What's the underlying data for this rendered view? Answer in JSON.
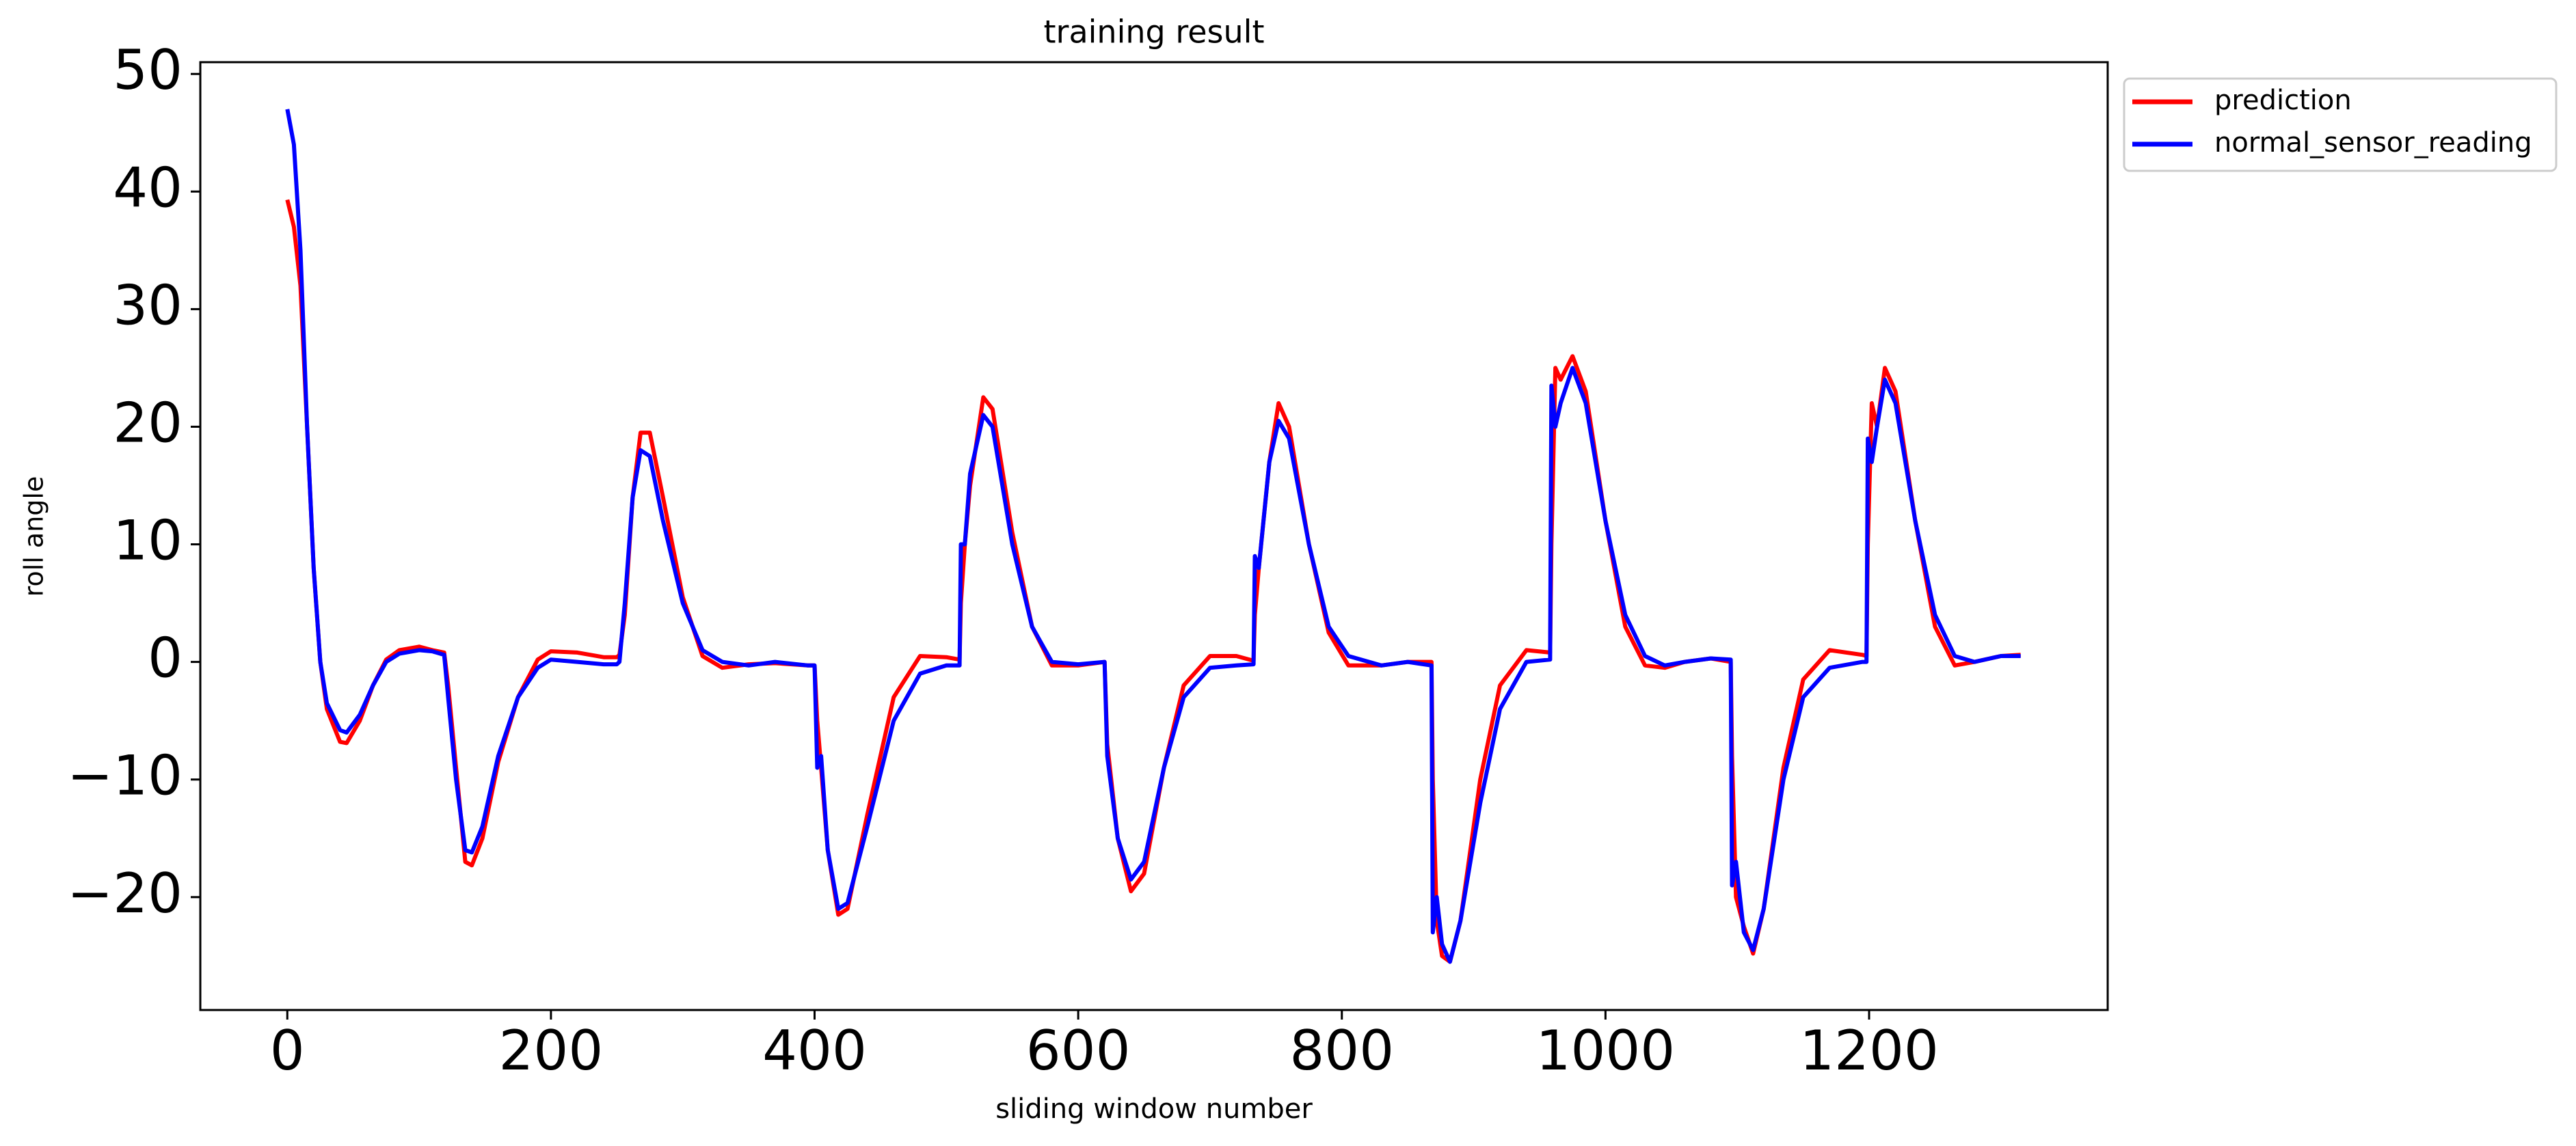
{
  "chart_data": {
    "type": "line",
    "title": "training result",
    "x_label": "sliding window number",
    "y_label": "roll angle",
    "x": [
      0,
      5,
      10,
      15,
      20,
      25,
      30,
      40,
      45,
      55,
      65,
      75,
      85,
      100,
      110,
      119,
      122,
      128,
      135,
      140,
      148,
      160,
      175,
      190,
      200,
      220,
      240,
      250,
      252,
      256,
      262,
      268,
      275,
      285,
      300,
      315,
      330,
      350,
      370,
      395,
      400,
      402,
      405,
      410,
      418,
      425,
      440,
      460,
      480,
      500,
      510,
      511,
      514,
      518,
      528,
      535,
      550,
      565,
      580,
      600,
      620,
      622,
      630,
      640,
      650,
      665,
      680,
      700,
      720,
      733,
      734,
      737,
      745,
      752,
      760,
      775,
      790,
      805,
      830,
      850,
      868,
      869,
      872,
      876,
      882,
      890,
      905,
      920,
      940,
      958,
      959,
      962,
      966,
      975,
      985,
      1000,
      1015,
      1030,
      1045,
      1060,
      1080,
      1095,
      1096,
      1099,
      1105,
      1112,
      1120,
      1135,
      1150,
      1170,
      1195,
      1198,
      1199,
      1202,
      1206,
      1212,
      1220,
      1235,
      1250,
      1265,
      1280,
      1300,
      1315
    ],
    "series": [
      {
        "name": "prediction",
        "color": "#ff0000",
        "values": [
          39.3,
          37,
          32,
          20,
          8,
          0,
          -4,
          -6.8,
          -6.9,
          -5,
          -2,
          0.2,
          1,
          1.3,
          1,
          0.8,
          -2,
          -9,
          -17,
          -17.3,
          -15,
          -8.5,
          -3,
          0.2,
          0.9,
          0.8,
          0.4,
          0.4,
          0.6,
          4,
          14,
          19.5,
          19.5,
          14,
          5.5,
          0.5,
          -0.5,
          -0.2,
          -0.1,
          -0.3,
          -0.3,
          -5,
          -9,
          -16,
          -21.5,
          -21,
          -13,
          -3,
          0.5,
          0.4,
          0.2,
          5,
          10,
          15,
          22.5,
          21.5,
          11,
          3,
          -0.3,
          -0.3,
          0,
          -7,
          -15,
          -19.5,
          -18,
          -9,
          -2,
          0.5,
          0.5,
          0.1,
          4,
          8,
          17,
          22,
          20,
          10,
          2.5,
          -0.3,
          -0.3,
          0,
          0,
          -10,
          -22,
          -25,
          -25.5,
          -22,
          -10,
          -2,
          1,
          0.8,
          10,
          25,
          24,
          26,
          23,
          12,
          3,
          -0.3,
          -0.5,
          0,
          0.3,
          0,
          -8,
          -20,
          -22.5,
          -24.8,
          -21,
          -9,
          -1.5,
          1,
          0.6,
          0.5,
          10,
          22,
          20,
          25,
          23,
          12,
          3,
          -0.3,
          0,
          0.5,
          0.6
        ]
      },
      {
        "name": "normal_sensor_reading",
        "color": "#0000ff",
        "values": [
          47,
          44,
          35,
          20,
          8,
          0,
          -3.5,
          -5.8,
          -6,
          -4.5,
          -2,
          0,
          0.7,
          1,
          0.9,
          0.6,
          -3,
          -10,
          -16,
          -16.2,
          -14,
          -8,
          -3,
          -0.5,
          0.2,
          0,
          -0.2,
          -0.2,
          0,
          5,
          14,
          18,
          17.5,
          12,
          5,
          1,
          0,
          -0.3,
          0,
          -0.3,
          -0.3,
          -9,
          -8,
          -16,
          -21,
          -20.5,
          -14,
          -5,
          -1,
          -0.3,
          -0.3,
          10,
          10,
          16,
          21,
          20,
          10,
          3,
          0,
          -0.2,
          0,
          -8,
          -15,
          -18.5,
          -17,
          -9,
          -3,
          -0.5,
          -0.3,
          -0.2,
          9,
          8,
          17,
          20.5,
          19,
          10,
          3,
          0.5,
          -0.3,
          0,
          -0.3,
          -23,
          -20,
          -24,
          -25.5,
          -22,
          -12,
          -4,
          0,
          0.2,
          23.5,
          20,
          22,
          25,
          22,
          12,
          4,
          0.5,
          -0.3,
          0,
          0.3,
          0.2,
          -19,
          -17,
          -23,
          -24.5,
          -21,
          -10,
          -3,
          -0.5,
          0,
          0,
          19,
          17,
          20,
          24,
          22,
          12,
          4,
          0.5,
          0,
          0.5,
          0.5
        ]
      }
    ],
    "xlim": [
      -66,
      1381
    ],
    "ylim": [
      -29.6,
      51
    ],
    "xticks": [
      0,
      200,
      400,
      600,
      800,
      1000,
      1200
    ],
    "yticks": [
      {
        "value": -20,
        "label": "−20"
      },
      {
        "value": -10,
        "label": "−10"
      },
      0,
      10,
      20,
      30,
      40,
      50
    ],
    "legend": "upper right outside"
  }
}
